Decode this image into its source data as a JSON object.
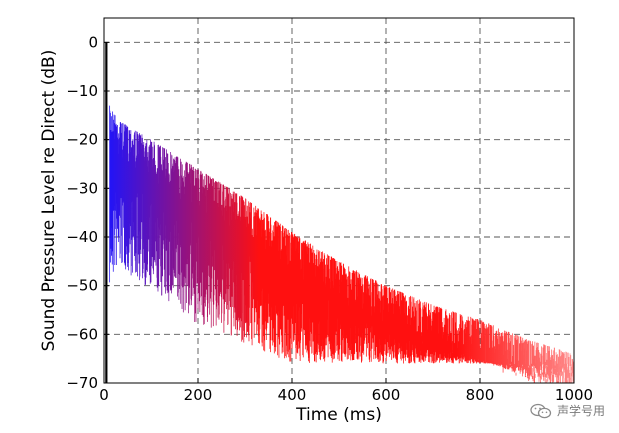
{
  "chart_data": {
    "type": "line",
    "title": "",
    "xlabel": "Time (ms)",
    "ylabel": "Sound Pressure Level re Direct (dB)",
    "xlim": [
      0,
      1000
    ],
    "ylim": [
      -70,
      5
    ],
    "xticks": [
      0,
      200,
      400,
      600,
      800,
      1000
    ],
    "yticks": [
      0,
      -10,
      -20,
      -30,
      -40,
      -50,
      -60,
      -70
    ],
    "grid": true,
    "grid_style": "dashed",
    "direct_sound": {
      "x": 5,
      "y": 0
    },
    "envelope": [
      {
        "x": 5,
        "upper": 0,
        "lower": -70
      },
      {
        "x": 12,
        "upper": -13,
        "lower": -55
      },
      {
        "x": 30,
        "upper": -16,
        "lower": -50
      },
      {
        "x": 100,
        "upper": -20,
        "lower": -55
      },
      {
        "x": 200,
        "upper": -26,
        "lower": -62
      },
      {
        "x": 300,
        "upper": -32,
        "lower": -66
      },
      {
        "x": 400,
        "upper": -39,
        "lower": -70
      },
      {
        "x": 500,
        "upper": -45,
        "lower": -70
      },
      {
        "x": 600,
        "upper": -50,
        "lower": -70
      },
      {
        "x": 700,
        "upper": -54,
        "lower": -70
      },
      {
        "x": 800,
        "upper": -57,
        "lower": -70
      },
      {
        "x": 900,
        "upper": -61,
        "lower": -70
      },
      {
        "x": 1000,
        "upper": -64,
        "lower": -70
      }
    ],
    "color_gradient": {
      "start": "#1a14ff",
      "mid": "#ff1010",
      "end": "#ff8a8a"
    },
    "colors": {
      "axis": "#000000",
      "grid": "#555555"
    }
  },
  "watermark": {
    "text": "声学号用"
  }
}
